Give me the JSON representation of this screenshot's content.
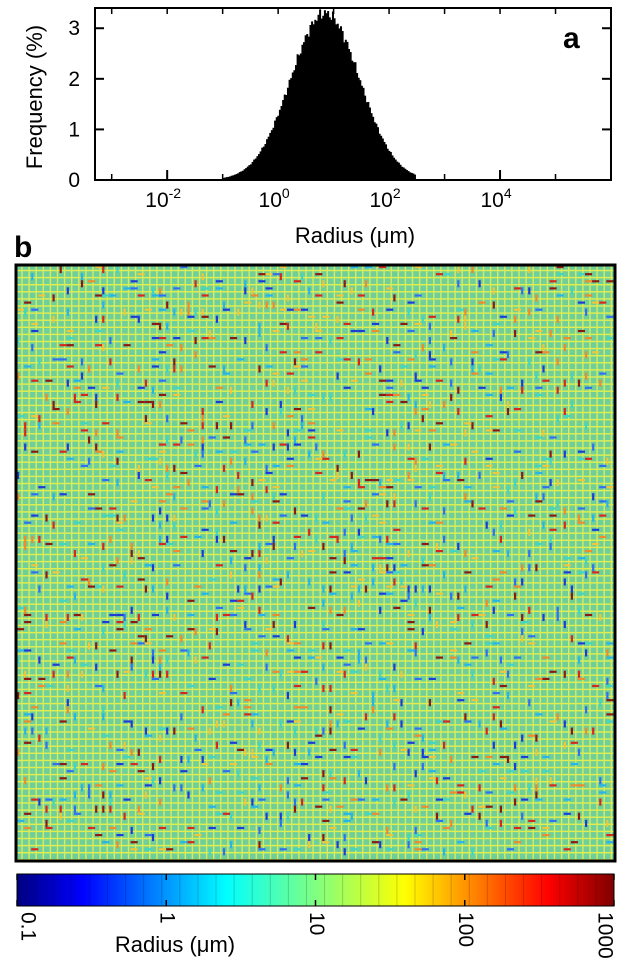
{
  "chart_data": [
    {
      "panel": "a",
      "type": "bar",
      "xlabel": "Radius (μm)",
      "ylabel": "Frequency (%)",
      "x_scale": "log",
      "xlim": [
        0.0005,
        1000000
      ],
      "ylim": [
        0,
        3.4
      ],
      "x_ticks": [
        {
          "value": 0.01,
          "base": "10",
          "exp": "-2"
        },
        {
          "value": 1,
          "base": "10",
          "exp": "0"
        },
        {
          "value": 100,
          "base": "10",
          "exp": "2"
        },
        {
          "value": 10000,
          "base": "10",
          "exp": "4"
        }
      ],
      "y_ticks": [
        "0",
        "1",
        "2",
        "3"
      ],
      "distribution": "log-normal",
      "mode_radius": 7,
      "peak_frequency": 3.3,
      "range": [
        0.1,
        300
      ],
      "samples": [
        {
          "x": 0.15,
          "y": 0.05
        },
        {
          "x": 0.3,
          "y": 0.2
        },
        {
          "x": 0.6,
          "y": 0.5
        },
        {
          "x": 1,
          "y": 1.0
        },
        {
          "x": 2,
          "y": 1.8
        },
        {
          "x": 4,
          "y": 2.8
        },
        {
          "x": 7,
          "y": 3.3
        },
        {
          "x": 12,
          "y": 3.0
        },
        {
          "x": 25,
          "y": 2.0
        },
        {
          "x": 50,
          "y": 1.1
        },
        {
          "x": 100,
          "y": 0.45
        },
        {
          "x": 200,
          "y": 0.1
        }
      ],
      "grid": false
    },
    {
      "panel": "b",
      "type": "heatmap",
      "description_of_content": "network grid colored by radius",
      "color_scale": "log",
      "colorbar": {
        "label": "Radius (μm)",
        "ticks": [
          "0.1",
          "1",
          "10",
          "100",
          "1000"
        ],
        "range": [
          0.1,
          1000
        ],
        "colormap": "jet"
      }
    }
  ],
  "labels": {
    "panel_a": "a",
    "panel_b": "b"
  }
}
